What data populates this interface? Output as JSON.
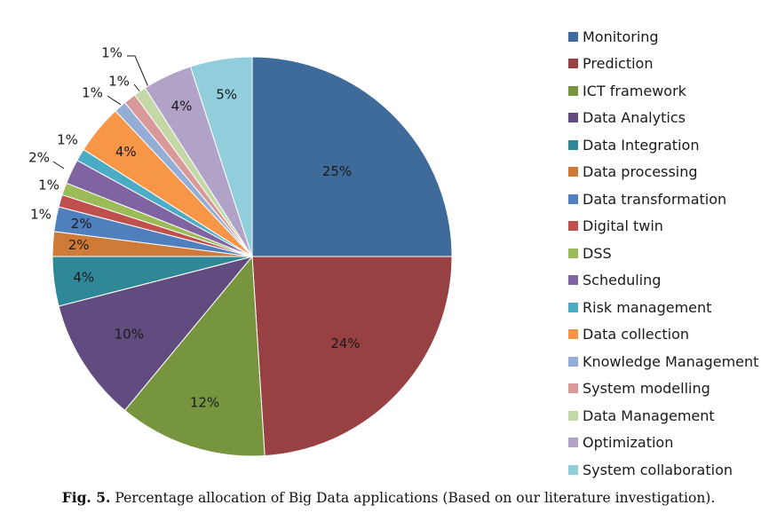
{
  "chart_data": {
    "type": "pie",
    "title": "",
    "categories": [
      "Monitoring",
      "Prediction",
      "ICT framework",
      "Data Analytics",
      "Data Integration",
      "Data processing",
      "Data transformation",
      "Digital twin",
      "DSS",
      "Scheduling",
      "Risk management",
      "Data collection",
      "Knowledge Management",
      "System modelling",
      "Data Management",
      "Optimization",
      "System collaboration"
    ],
    "values": [
      25,
      24,
      12,
      10,
      4,
      2,
      2,
      1,
      1,
      2,
      1,
      4,
      1,
      1,
      1,
      4,
      5
    ],
    "labels": [
      "25%",
      "24%",
      "12%",
      "10%",
      "4%",
      "2%",
      "2%",
      "1%",
      "1%",
      "2%",
      "1%",
      "4%",
      "1%",
      "1%",
      "1%",
      "4%",
      "5%"
    ],
    "colors": [
      "#3e6b9a",
      "#974142",
      "#77943f",
      "#614c80",
      "#2f8898",
      "#cf7b37",
      "#4f80bd",
      "#c0504d",
      "#9bbb59",
      "#8064a2",
      "#4bacc6",
      "#f79646",
      "#94add6",
      "#d9989a",
      "#c3d8a6",
      "#b1a2c8",
      "#92cddc"
    ],
    "legend_position": "right"
  },
  "caption": {
    "prefix": "Fig. 5.",
    "text": "Percentage allocation of Big Data applications (Based on our literature investigation)."
  }
}
